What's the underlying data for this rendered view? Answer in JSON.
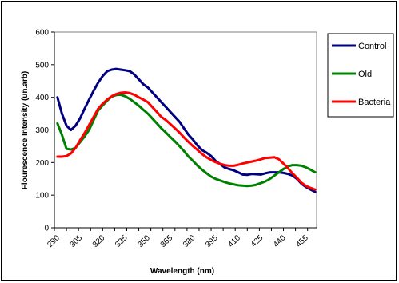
{
  "chart_data": {
    "type": "line",
    "title": "",
    "xlabel": "Wavelength (nm)",
    "ylabel": "Flourescence Intensity (un.arb)",
    "x_tick_labels": [
      "290",
      "305",
      "320",
      "335",
      "350",
      "365",
      "380",
      "395",
      "410",
      "425",
      "440",
      "455"
    ],
    "y_tick_labels": [
      "0",
      "100",
      "200",
      "300",
      "400",
      "500",
      "600"
    ],
    "xlim": [
      288,
      462
    ],
    "ylim": [
      0,
      600
    ],
    "grid": false,
    "legend_position": "right",
    "x": [
      290,
      293,
      296,
      299,
      302,
      305,
      308,
      311,
      314,
      317,
      320,
      323,
      326,
      329,
      332,
      335,
      338,
      341,
      344,
      347,
      350,
      353,
      356,
      359,
      362,
      365,
      368,
      371,
      374,
      377,
      380,
      383,
      386,
      389,
      392,
      395,
      398,
      401,
      404,
      407,
      410,
      413,
      416,
      419,
      422,
      425,
      428,
      431,
      434,
      437,
      440,
      443,
      446,
      449,
      452,
      455,
      458,
      461
    ],
    "series": [
      {
        "name": "Control",
        "color": "#000080",
        "values": [
          400,
          350,
          313,
          300,
          313,
          335,
          365,
          393,
          420,
          445,
          465,
          480,
          485,
          487,
          485,
          483,
          480,
          470,
          455,
          440,
          430,
          415,
          400,
          385,
          370,
          355,
          340,
          325,
          305,
          285,
          270,
          252,
          238,
          230,
          220,
          205,
          195,
          185,
          180,
          176,
          170,
          163,
          162,
          165,
          164,
          163,
          167,
          170,
          170,
          170,
          168,
          165,
          160,
          150,
          135,
          125,
          117,
          110
        ]
      },
      {
        "name": "Old",
        "color": "#008000",
        "values": [
          320,
          285,
          242,
          240,
          245,
          262,
          280,
          300,
          330,
          360,
          375,
          390,
          402,
          407,
          408,
          403,
          395,
          385,
          374,
          362,
          350,
          335,
          320,
          305,
          292,
          278,
          265,
          250,
          235,
          218,
          205,
          190,
          178,
          167,
          157,
          150,
          145,
          140,
          136,
          133,
          130,
          129,
          128,
          129,
          132,
          137,
          142,
          150,
          160,
          170,
          180,
          188,
          192,
          192,
          190,
          185,
          178,
          170
        ]
      },
      {
        "name": "Bacteria",
        "color": "#ff0000",
        "values": [
          218,
          218,
          220,
          228,
          245,
          268,
          290,
          315,
          340,
          365,
          380,
          393,
          403,
          410,
          414,
          415,
          413,
          408,
          400,
          393,
          385,
          370,
          355,
          340,
          330,
          318,
          305,
          292,
          277,
          263,
          250,
          238,
          226,
          216,
          208,
          201,
          196,
          192,
          190,
          190,
          193,
          197,
          200,
          203,
          206,
          210,
          214,
          215,
          216,
          210,
          197,
          183,
          167,
          153,
          138,
          128,
          122,
          117
        ]
      }
    ]
  }
}
